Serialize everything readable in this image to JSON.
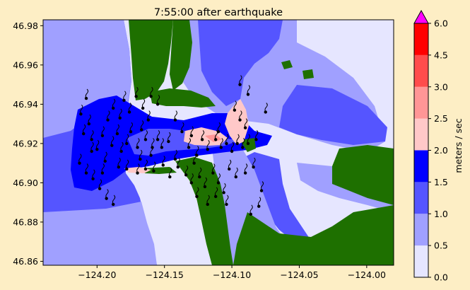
{
  "chart_data": {
    "type": "heatmap",
    "title": "7:55:00 after earthquake",
    "xlim": [
      -124.24,
      -123.98
    ],
    "ylim": [
      46.858,
      46.983
    ],
    "x_ticks": [
      {
        "value": -124.2,
        "label": "−124.20"
      },
      {
        "value": -124.15,
        "label": "−124.15"
      },
      {
        "value": -124.1,
        "label": "−124.10"
      },
      {
        "value": -124.05,
        "label": "−124.05"
      },
      {
        "value": -124.0,
        "label": "−124.00"
      }
    ],
    "y_ticks": [
      {
        "value": 46.86,
        "label": "46.86"
      },
      {
        "value": 46.88,
        "label": "46.88"
      },
      {
        "value": 46.9,
        "label": "46.90"
      },
      {
        "value": 46.92,
        "label": "46.92"
      },
      {
        "value": 46.94,
        "label": "46.94"
      },
      {
        "value": 46.96,
        "label": "46.96"
      },
      {
        "value": 46.98,
        "label": "46.98"
      }
    ],
    "colorbar": {
      "label": "meters / sec",
      "levels": [
        0.0,
        0.5,
        1.0,
        1.5,
        2.0,
        2.5,
        3.0,
        4.5,
        6.0
      ],
      "level_labels": [
        "0.0",
        "0.5",
        "1.0",
        "1.5",
        "2.0",
        "2.5",
        "3.0",
        "4.5",
        "6.0"
      ],
      "colors": [
        "#e6e6ff",
        "#a0a0ff",
        "#5555ff",
        "#0000ff",
        "#ffc8c8",
        "#ff9696",
        "#ff4c4c",
        "#ff0000"
      ],
      "extend_max_color": "#ff00ff"
    },
    "land_color": "#1e7000",
    "tracers": [
      [
        -124.208,
        46.943
      ],
      [
        -124.212,
        46.935
      ],
      [
        -124.206,
        46.93
      ],
      [
        -124.21,
        46.925
      ],
      [
        -124.204,
        46.922
      ],
      [
        -124.2,
        46.917
      ],
      [
        -124.196,
        46.924
      ],
      [
        -124.192,
        46.932
      ],
      [
        -124.188,
        46.938
      ],
      [
        -124.183,
        46.933
      ],
      [
        -124.185,
        46.925
      ],
      [
        -124.189,
        46.919
      ],
      [
        -124.182,
        46.916
      ],
      [
        -124.178,
        46.92
      ],
      [
        -124.175,
        46.926
      ],
      [
        -124.18,
        46.942
      ],
      [
        -124.176,
        46.936
      ],
      [
        -124.171,
        46.944
      ],
      [
        -124.166,
        46.938
      ],
      [
        -124.162,
        46.932
      ],
      [
        -124.167,
        46.927
      ],
      [
        -124.17,
        46.918
      ],
      [
        -124.164,
        46.922
      ],
      [
        -124.159,
        46.918
      ],
      [
        -124.155,
        46.922
      ],
      [
        -124.152,
        46.918
      ],
      [
        -124.147,
        46.921
      ],
      [
        -124.16,
        46.944
      ],
      [
        -124.155,
        46.94
      ],
      [
        -124.142,
        46.932
      ],
      [
        -124.137,
        46.926
      ],
      [
        -124.13,
        46.924
      ],
      [
        -124.132,
        46.918
      ],
      [
        -124.126,
        46.914
      ],
      [
        -124.118,
        46.917
      ],
      [
        -124.112,
        46.922
      ],
      [
        -124.108,
        46.918
      ],
      [
        -124.104,
        46.92
      ],
      [
        -124.1,
        46.916
      ],
      [
        -124.096,
        46.92
      ],
      [
        -124.092,
        46.918
      ],
      [
        -124.088,
        46.92
      ],
      [
        -124.082,
        46.922
      ],
      [
        -124.094,
        46.95
      ],
      [
        -124.088,
        46.945
      ],
      [
        -124.098,
        46.937
      ],
      [
        -124.094,
        46.932
      ],
      [
        -124.09,
        46.928
      ],
      [
        -124.075,
        46.936
      ],
      [
        -124.213,
        46.91
      ],
      [
        -124.208,
        46.905
      ],
      [
        -124.203,
        46.902
      ],
      [
        -124.198,
        46.897
      ],
      [
        -124.193,
        46.892
      ],
      [
        -124.188,
        46.889
      ],
      [
        -124.194,
        46.911
      ],
      [
        -124.184,
        46.908
      ],
      [
        -124.178,
        46.907
      ],
      [
        -124.17,
        46.905
      ],
      [
        -124.164,
        46.907
      ],
      [
        -124.158,
        46.906
      ],
      [
        -124.151,
        46.909
      ],
      [
        -124.146,
        46.903
      ],
      [
        -124.14,
        46.908
      ],
      [
        -124.134,
        46.904
      ],
      [
        -124.128,
        46.91
      ],
      [
        -124.124,
        46.903
      ],
      [
        -124.12,
        46.898
      ],
      [
        -124.114,
        46.905
      ],
      [
        -124.11,
        46.9
      ],
      [
        -124.106,
        46.895
      ],
      [
        -124.102,
        46.907
      ],
      [
        -124.097,
        46.903
      ],
      [
        -124.09,
        46.905
      ],
      [
        -124.084,
        46.908
      ],
      [
        -124.078,
        46.896
      ],
      [
        -124.086,
        46.884
      ],
      [
        -124.08,
        46.888
      ],
      [
        -124.126,
        46.893
      ],
      [
        -124.118,
        46.889
      ],
      [
        -124.112,
        46.893
      ],
      [
        -124.104,
        46.889
      ],
      [
        -124.13,
        46.9
      ],
      [
        -124.168,
        46.912
      ],
      [
        -124.16,
        46.914
      ],
      [
        -124.142,
        46.912
      ],
      [
        -124.122,
        46.922
      ],
      [
        -124.11,
        46.926
      ],
      [
        -124.204,
        46.916
      ],
      [
        -124.196,
        46.905
      ]
    ]
  }
}
